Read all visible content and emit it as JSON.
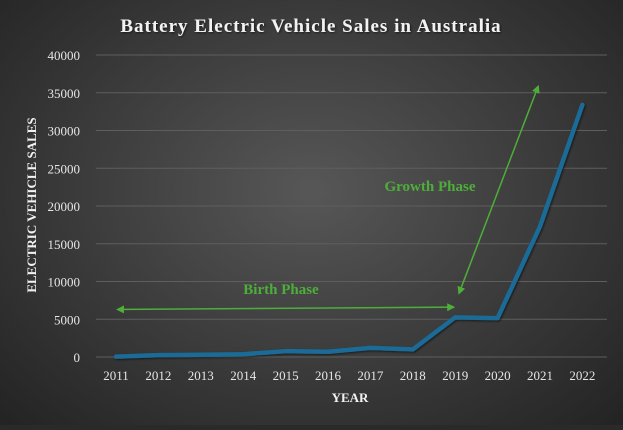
{
  "chart_data": {
    "type": "line",
    "title": "Battery Electric Vehicle Sales in Australia",
    "xlabel": "YEAR",
    "ylabel": "ELECTRIC VEHICLE SALES",
    "categories": [
      "2011",
      "2012",
      "2013",
      "2014",
      "2015",
      "2016",
      "2017",
      "2018",
      "2019",
      "2020",
      "2021",
      "2022"
    ],
    "values": [
      49,
      253,
      293,
      370,
      770,
      692,
      1208,
      1006,
      5250,
      5150,
      17300,
      33400
    ],
    "ylim": [
      0,
      40000
    ],
    "yticks": [
      "0",
      "5000",
      "10000",
      "15000",
      "20000",
      "25000",
      "30000",
      "35000",
      "40000"
    ],
    "grid": true,
    "legend": "none",
    "line_color": "#1a6a96",
    "annotations": [
      {
        "text": "Birth Phase",
        "color": "#4daf3a",
        "arrow_from": [
          "2011",
          6300
        ],
        "arrow_to": [
          "2019",
          6600
        ]
      },
      {
        "text": "Growth Phase",
        "color": "#4daf3a",
        "arrow_from": [
          "2019",
          8500
        ],
        "arrow_to": [
          "2021",
          35800
        ]
      }
    ]
  }
}
